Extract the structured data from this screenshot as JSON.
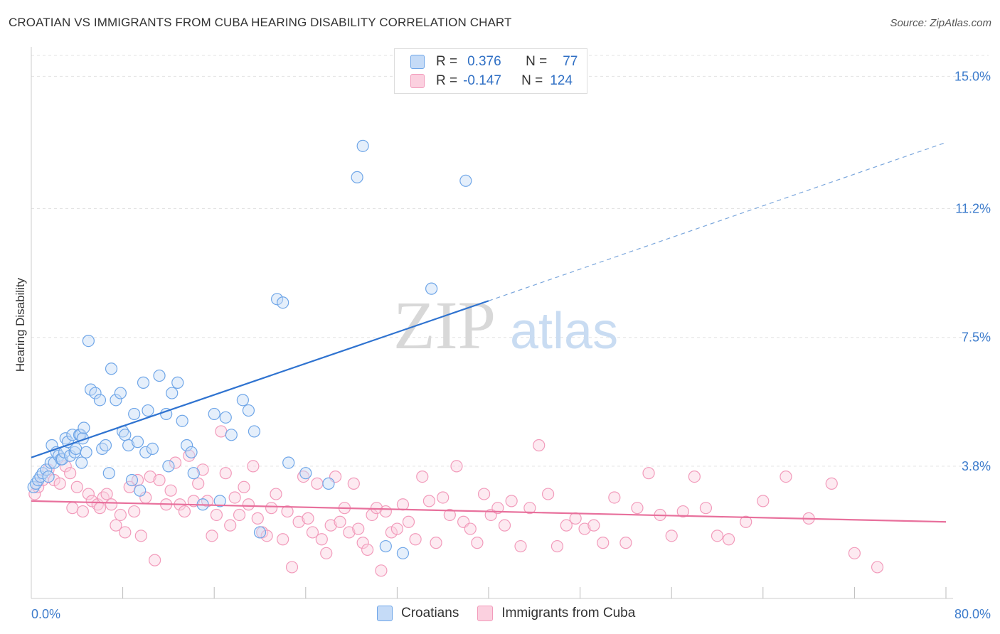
{
  "title": "CROATIAN VS IMMIGRANTS FROM CUBA HEARING DISABILITY CORRELATION CHART",
  "source": "Source: ZipAtlas.com",
  "watermark": {
    "zip": "ZIP",
    "atlas": "atlas"
  },
  "legend": {
    "rows": [
      {
        "r_label": "R =",
        "r_value": "0.376",
        "n_label": "N =",
        "n_value": "77",
        "color": "#6fa6e8",
        "fill": "#c5dbf7"
      },
      {
        "r_label": "R =",
        "r_value": "-0.147",
        "n_label": "N =",
        "n_value": "124",
        "color": "#f29bbb",
        "fill": "#fbd0df"
      }
    ]
  },
  "bottom_legend": [
    {
      "label": "Croatians",
      "color": "#6fa6e8",
      "fill": "#c5dbf7"
    },
    {
      "label": "Immigrants from Cuba",
      "color": "#f29bbb",
      "fill": "#fbd0df"
    }
  ],
  "chart_data": {
    "type": "scatter",
    "xlabel": "",
    "ylabel": "Hearing Disability",
    "xlim": [
      0,
      80
    ],
    "ylim": [
      0,
      15.6
    ],
    "x_tick_labels": [
      "0.0%",
      "80.0%"
    ],
    "y_ticks": [
      {
        "value": 3.8,
        "label": "3.8%"
      },
      {
        "value": 7.5,
        "label": "7.5%"
      },
      {
        "value": 11.2,
        "label": "11.2%"
      },
      {
        "value": 15.0,
        "label": "15.0%"
      }
    ],
    "grid": "horizontal-dashed",
    "legend_position": "top-center",
    "colors": {
      "croatians": "#2f73d0",
      "cuba": "#e8709c",
      "croatians_point": "#6fa6e8",
      "cuba_point": "#f29bbb"
    },
    "series": [
      {
        "name": "Croatians",
        "trend": {
          "x": [
            0,
            40
          ],
          "y": [
            4.05,
            8.55
          ],
          "dashed_to": {
            "x": 80,
            "y": 13.1
          }
        },
        "points": [
          [
            0.2,
            3.2
          ],
          [
            0.4,
            3.3
          ],
          [
            0.6,
            3.4
          ],
          [
            0.8,
            3.5
          ],
          [
            1.0,
            3.6
          ],
          [
            1.3,
            3.7
          ],
          [
            1.5,
            3.5
          ],
          [
            1.7,
            3.9
          ],
          [
            1.8,
            4.4
          ],
          [
            2.0,
            3.9
          ],
          [
            2.2,
            4.2
          ],
          [
            2.4,
            4.1
          ],
          [
            2.6,
            4.0
          ],
          [
            2.7,
            4.0
          ],
          [
            2.9,
            4.2
          ],
          [
            3.0,
            4.6
          ],
          [
            3.2,
            4.5
          ],
          [
            3.4,
            4.1
          ],
          [
            3.6,
            4.7
          ],
          [
            3.8,
            4.2
          ],
          [
            3.9,
            4.3
          ],
          [
            4.2,
            4.7
          ],
          [
            4.3,
            4.7
          ],
          [
            4.4,
            3.9
          ],
          [
            4.5,
            4.6
          ],
          [
            4.6,
            4.9
          ],
          [
            4.8,
            4.2
          ],
          [
            5.0,
            7.4
          ],
          [
            5.2,
            6.0
          ],
          [
            5.6,
            5.9
          ],
          [
            6.0,
            5.7
          ],
          [
            6.2,
            4.3
          ],
          [
            6.5,
            4.4
          ],
          [
            6.8,
            3.6
          ],
          [
            7.0,
            6.6
          ],
          [
            7.4,
            5.7
          ],
          [
            7.8,
            5.9
          ],
          [
            8.0,
            4.8
          ],
          [
            8.2,
            4.7
          ],
          [
            8.5,
            4.4
          ],
          [
            8.8,
            3.4
          ],
          [
            9.0,
            5.3
          ],
          [
            9.3,
            4.5
          ],
          [
            9.5,
            3.1
          ],
          [
            9.8,
            6.2
          ],
          [
            10.0,
            4.2
          ],
          [
            10.2,
            5.4
          ],
          [
            10.6,
            4.3
          ],
          [
            11.2,
            6.4
          ],
          [
            11.8,
            5.3
          ],
          [
            12.0,
            3.8
          ],
          [
            12.3,
            5.9
          ],
          [
            12.8,
            6.2
          ],
          [
            13.2,
            5.1
          ],
          [
            13.6,
            4.4
          ],
          [
            14.0,
            4.2
          ],
          [
            14.2,
            3.6
          ],
          [
            15.0,
            2.7
          ],
          [
            16.0,
            5.3
          ],
          [
            16.5,
            2.8
          ],
          [
            17.0,
            5.2
          ],
          [
            17.5,
            4.7
          ],
          [
            18.5,
            5.7
          ],
          [
            19.0,
            5.4
          ],
          [
            19.5,
            4.8
          ],
          [
            20.0,
            1.9
          ],
          [
            21.5,
            8.6
          ],
          [
            22.0,
            8.5
          ],
          [
            22.5,
            3.9
          ],
          [
            24.0,
            3.6
          ],
          [
            26.0,
            3.3
          ],
          [
            28.5,
            12.1
          ],
          [
            29.0,
            13.0
          ],
          [
            31.0,
            1.5
          ],
          [
            32.5,
            1.3
          ],
          [
            35.0,
            8.9
          ],
          [
            38.0,
            12.0
          ]
        ]
      },
      {
        "name": "Immigrants from Cuba",
        "trend": {
          "x": [
            0,
            80
          ],
          "y": [
            2.8,
            2.2
          ]
        },
        "points": [
          [
            0.3,
            3.0
          ],
          [
            0.6,
            3.2
          ],
          [
            1.0,
            3.4
          ],
          [
            1.5,
            3.7
          ],
          [
            2.0,
            3.4
          ],
          [
            2.5,
            3.3
          ],
          [
            3.0,
            3.8
          ],
          [
            3.4,
            3.6
          ],
          [
            3.6,
            2.6
          ],
          [
            4.0,
            3.2
          ],
          [
            4.5,
            2.5
          ],
          [
            5.0,
            3.0
          ],
          [
            5.3,
            2.8
          ],
          [
            5.8,
            2.7
          ],
          [
            6.0,
            2.6
          ],
          [
            6.3,
            2.9
          ],
          [
            6.6,
            3.0
          ],
          [
            7.0,
            2.7
          ],
          [
            7.4,
            2.1
          ],
          [
            7.8,
            2.4
          ],
          [
            8.2,
            1.9
          ],
          [
            8.6,
            3.2
          ],
          [
            9.0,
            2.5
          ],
          [
            9.3,
            3.4
          ],
          [
            9.6,
            1.8
          ],
          [
            10.0,
            2.9
          ],
          [
            10.4,
            3.5
          ],
          [
            10.8,
            1.1
          ],
          [
            11.2,
            3.4
          ],
          [
            11.8,
            2.7
          ],
          [
            12.2,
            3.1
          ],
          [
            12.6,
            3.9
          ],
          [
            13.0,
            2.7
          ],
          [
            13.4,
            2.5
          ],
          [
            13.8,
            4.1
          ],
          [
            14.2,
            2.8
          ],
          [
            14.6,
            3.3
          ],
          [
            15.0,
            3.7
          ],
          [
            15.4,
            2.8
          ],
          [
            15.8,
            1.8
          ],
          [
            16.2,
            2.4
          ],
          [
            16.6,
            4.8
          ],
          [
            17.0,
            3.6
          ],
          [
            17.4,
            2.1
          ],
          [
            17.8,
            2.9
          ],
          [
            18.2,
            2.4
          ],
          [
            18.6,
            3.2
          ],
          [
            19.0,
            2.7
          ],
          [
            19.4,
            3.8
          ],
          [
            19.8,
            2.3
          ],
          [
            20.2,
            1.9
          ],
          [
            20.6,
            1.8
          ],
          [
            21.0,
            2.6
          ],
          [
            21.4,
            3.0
          ],
          [
            22.0,
            1.7
          ],
          [
            22.4,
            2.5
          ],
          [
            22.8,
            0.9
          ],
          [
            23.4,
            2.2
          ],
          [
            23.8,
            3.5
          ],
          [
            24.2,
            2.3
          ],
          [
            24.6,
            1.9
          ],
          [
            25.0,
            3.3
          ],
          [
            25.4,
            1.7
          ],
          [
            25.8,
            1.3
          ],
          [
            26.2,
            2.1
          ],
          [
            26.6,
            3.5
          ],
          [
            27.0,
            2.2
          ],
          [
            27.4,
            2.6
          ],
          [
            27.8,
            1.9
          ],
          [
            28.2,
            3.3
          ],
          [
            28.6,
            2.0
          ],
          [
            29.0,
            1.6
          ],
          [
            29.4,
            1.4
          ],
          [
            29.8,
            2.4
          ],
          [
            30.2,
            2.6
          ],
          [
            30.6,
            0.8
          ],
          [
            31.0,
            2.5
          ],
          [
            31.5,
            1.9
          ],
          [
            32.0,
            2.0
          ],
          [
            32.5,
            2.7
          ],
          [
            33.0,
            2.2
          ],
          [
            33.6,
            1.7
          ],
          [
            34.2,
            3.5
          ],
          [
            34.8,
            2.8
          ],
          [
            35.4,
            1.6
          ],
          [
            36.0,
            2.9
          ],
          [
            36.6,
            2.4
          ],
          [
            37.2,
            3.8
          ],
          [
            37.8,
            2.2
          ],
          [
            38.4,
            2.0
          ],
          [
            39.0,
            1.6
          ],
          [
            39.6,
            3.0
          ],
          [
            40.2,
            2.4
          ],
          [
            40.8,
            2.6
          ],
          [
            41.4,
            2.1
          ],
          [
            42.0,
            2.8
          ],
          [
            42.8,
            1.5
          ],
          [
            43.6,
            2.6
          ],
          [
            44.4,
            4.4
          ],
          [
            45.2,
            3.0
          ],
          [
            46.0,
            1.5
          ],
          [
            46.8,
            2.1
          ],
          [
            47.6,
            2.3
          ],
          [
            48.4,
            2.0
          ],
          [
            49.2,
            2.1
          ],
          [
            50.0,
            1.6
          ],
          [
            51.0,
            2.9
          ],
          [
            52.0,
            1.6
          ],
          [
            53.0,
            2.6
          ],
          [
            54.0,
            3.6
          ],
          [
            55.0,
            2.4
          ],
          [
            56.0,
            1.8
          ],
          [
            57.0,
            2.5
          ],
          [
            58.0,
            3.5
          ],
          [
            59.0,
            2.6
          ],
          [
            60.0,
            1.8
          ],
          [
            61.0,
            1.7
          ],
          [
            62.5,
            2.2
          ],
          [
            64.0,
            2.8
          ],
          [
            66.0,
            3.5
          ],
          [
            68.0,
            2.3
          ],
          [
            70.0,
            3.3
          ],
          [
            72.0,
            1.3
          ],
          [
            74.0,
            0.9
          ]
        ]
      }
    ]
  }
}
